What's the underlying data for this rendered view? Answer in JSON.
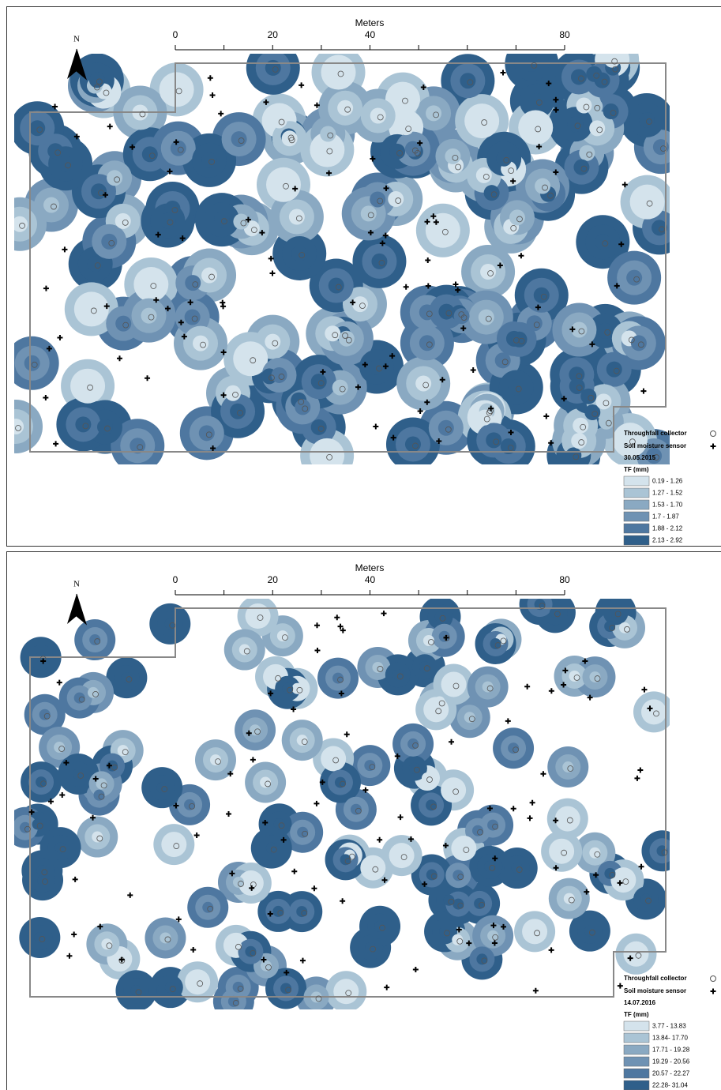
{
  "panels": [
    {
      "scale": {
        "title": "Meters",
        "labels": [
          "0",
          "20",
          "40",
          "80"
        ]
      },
      "north": "N",
      "legend": {
        "collector": "Throughfall collector",
        "sensor": "Soil moisture sensor",
        "date": "30.05.2015",
        "title": "TF (mm)",
        "classes": [
          {
            "label": "0.19 - 1.26",
            "color": "#d4e3ec"
          },
          {
            "label": "1.27 - 1.52",
            "color": "#aac4d5"
          },
          {
            "label": "1.53 - 1.70",
            "color": "#8aa9c2"
          },
          {
            "label": "1.7 - 1.87",
            "color": "#6f92b3"
          },
          {
            "label": "1.88 - 2.12",
            "color": "#4e77a0"
          },
          {
            "label": "2.13 - 2.92",
            "color": "#2f5f8a"
          }
        ]
      }
    },
    {
      "scale": {
        "title": "Meters",
        "labels": [
          "0",
          "20",
          "40",
          "80"
        ]
      },
      "north": "N",
      "legend": {
        "collector": "Throughfall collector",
        "sensor": "Soil moisture sensor",
        "date": "14.07.2016",
        "title": "TF (mm)",
        "classes": [
          {
            "label": "3.77 - 13.83",
            "color": "#d4e3ec"
          },
          {
            "label": "13.84- 17.70",
            "color": "#aac4d5"
          },
          {
            "label": "17.71 - 19.28",
            "color": "#8aa9c2"
          },
          {
            "label": "19.29 - 20.56",
            "color": "#6f92b3"
          },
          {
            "label": "20.57 - 22.27",
            "color": "#4e77a0"
          },
          {
            "label": "22.28- 31.04",
            "color": "#2f5f8a"
          }
        ]
      }
    }
  ]
}
